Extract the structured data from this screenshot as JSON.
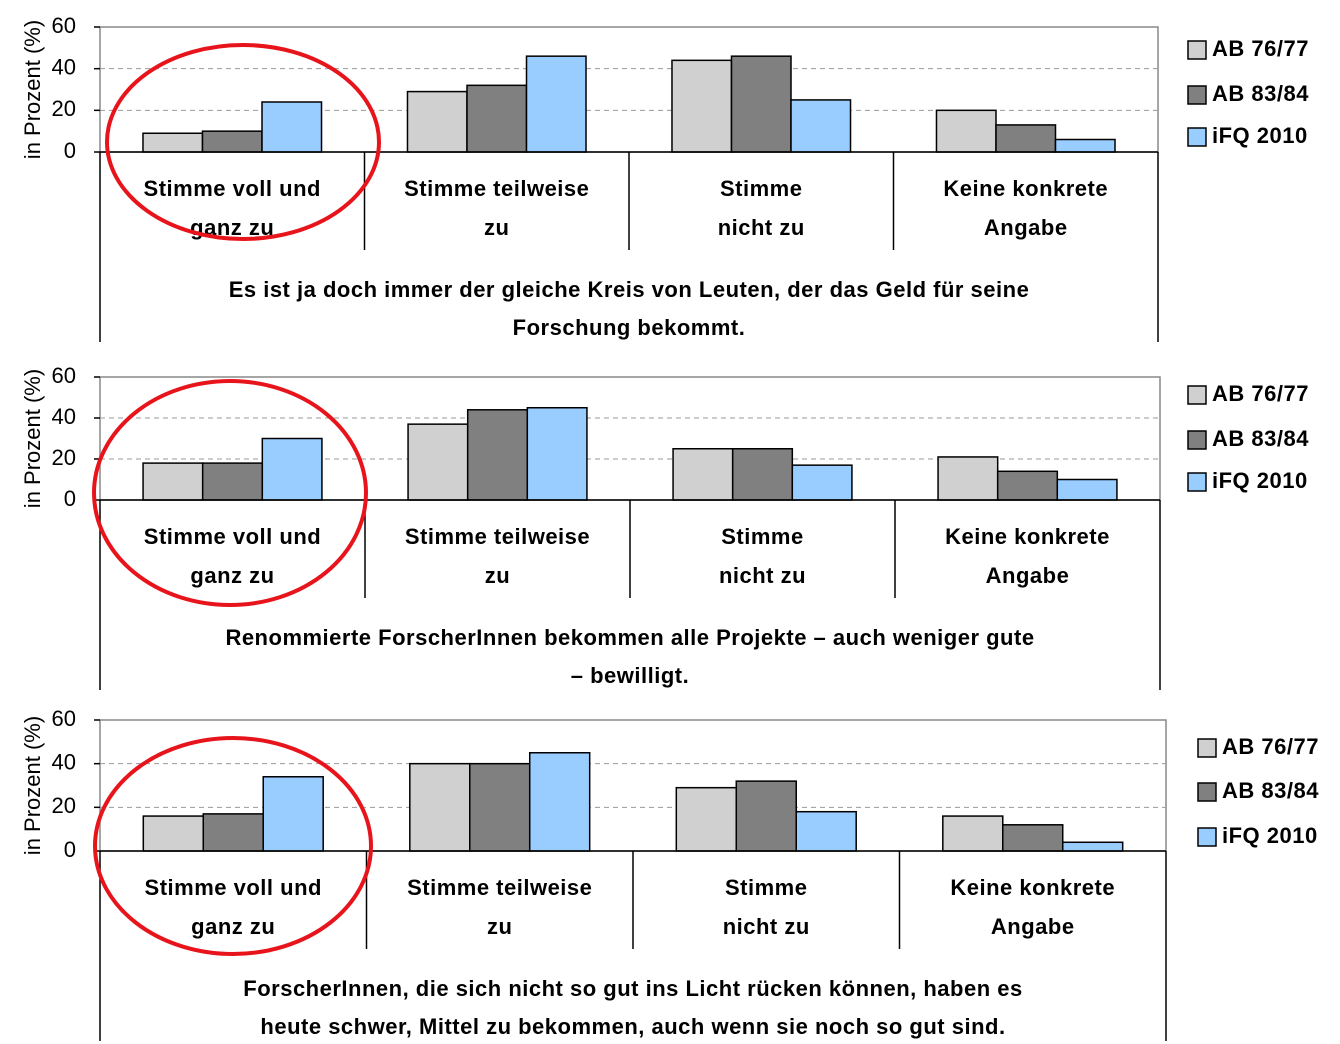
{
  "chart_data": [
    {
      "type": "bar",
      "ylabel": "in Prozent (%)",
      "categories": [
        [
          "Stimme voll und",
          "ganz zu"
        ],
        [
          "Stimme teilweise",
          "zu"
        ],
        [
          "Stimme",
          "nicht zu"
        ],
        [
          "Keine konkrete",
          "Angabe"
        ]
      ],
      "xlabel": [
        "Es ist ja doch immer der gleiche Kreis von Leuten, der das Geld für seine",
        "Forschung bekommt."
      ],
      "series": [
        {
          "name": "AB 76/77",
          "color": "#d0d0d0",
          "values": [
            9,
            29,
            44,
            20
          ]
        },
        {
          "name": "AB 83/84",
          "color": "#808080",
          "values": [
            10,
            32,
            46,
            13
          ]
        },
        {
          "name": "iFQ 2010",
          "color": "#99ccff",
          "values": [
            24,
            46,
            25,
            6
          ]
        }
      ],
      "ylim": [
        0,
        60
      ],
      "yticks": [
        0,
        20,
        40,
        60
      ],
      "grid": true
    },
    {
      "type": "bar",
      "ylabel": "in Prozent (%)",
      "categories": [
        [
          "Stimme voll und",
          "ganz zu"
        ],
        [
          "Stimme teilweise",
          "zu"
        ],
        [
          "Stimme",
          "nicht zu"
        ],
        [
          "Keine konkrete",
          "Angabe"
        ]
      ],
      "xlabel": [
        "Renommierte ForscherInnen bekommen alle Projekte – auch weniger gute",
        "– bewilligt."
      ],
      "series": [
        {
          "name": "AB 76/77",
          "color": "#d0d0d0",
          "values": [
            18,
            37,
            25,
            21
          ]
        },
        {
          "name": "AB 83/84",
          "color": "#808080",
          "values": [
            18,
            44,
            25,
            14
          ]
        },
        {
          "name": "iFQ 2010",
          "color": "#99ccff",
          "values": [
            30,
            45,
            17,
            10
          ]
        }
      ],
      "ylim": [
        0,
        60
      ],
      "yticks": [
        0,
        20,
        40,
        60
      ],
      "grid": true
    },
    {
      "type": "bar",
      "ylabel": "in Prozent (%)",
      "categories": [
        [
          "Stimme voll und",
          "ganz zu"
        ],
        [
          "Stimme teilweise",
          "zu"
        ],
        [
          "Stimme",
          "nicht zu"
        ],
        [
          "Keine konkrete",
          "Angabe"
        ]
      ],
      "xlabel": [
        "ForscherInnen, die sich nicht so gut ins Licht rücken können, haben es",
        "heute schwer, Mittel zu bekommen, auch wenn sie noch so gut sind."
      ],
      "series": [
        {
          "name": "AB 76/77",
          "color": "#d0d0d0",
          "values": [
            16,
            40,
            29,
            16
          ]
        },
        {
          "name": "AB 83/84",
          "color": "#808080",
          "values": [
            17,
            40,
            32,
            12
          ]
        },
        {
          "name": "iFQ 2010",
          "color": "#99ccff",
          "values": [
            34,
            45,
            18,
            4
          ]
        }
      ],
      "ylim": [
        0,
        60
      ],
      "yticks": [
        0,
        20,
        40,
        60
      ],
      "grid": true
    }
  ]
}
